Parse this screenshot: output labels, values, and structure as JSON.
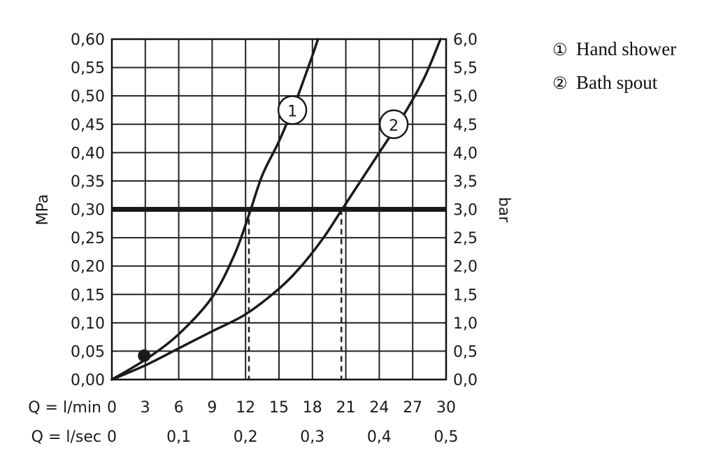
{
  "chart_data": {
    "type": "line",
    "title": "",
    "y_left": {
      "label": "MPa",
      "range": [
        0,
        0.6
      ],
      "step": 0.05,
      "ticks": [
        "0,00",
        "0,05",
        "0,10",
        "0,15",
        "0,20",
        "0,25",
        "0,30",
        "0,35",
        "0,40",
        "0,45",
        "0,50",
        "0,55",
        "0,60"
      ]
    },
    "y_right": {
      "label": "bar",
      "range": [
        0,
        6
      ],
      "step": 0.5,
      "ticks": [
        "0,0",
        "0,5",
        "1,0",
        "1,5",
        "2,0",
        "2,5",
        "3,0",
        "3,5",
        "4,0",
        "4,5",
        "5,0",
        "5,5",
        "6,0"
      ]
    },
    "x_lmin": {
      "label": "Q = l/min",
      "range": [
        0,
        30
      ],
      "step": 3,
      "ticks": [
        "0",
        "3",
        "6",
        "9",
        "12",
        "15",
        "18",
        "21",
        "24",
        "27",
        "30"
      ]
    },
    "x_lsec": {
      "label": "Q = l/sec",
      "ticks": [
        {
          "value": 0,
          "text": "0"
        },
        {
          "value": 0.1,
          "text": "0,1"
        },
        {
          "value": 0.2,
          "text": "0,2"
        },
        {
          "value": 0.3,
          "text": "0,3"
        },
        {
          "value": 0.4,
          "text": "0,4"
        },
        {
          "value": 0.5,
          "text": "0,5"
        }
      ]
    },
    "grid": true,
    "reference_line": {
      "y": 0.3
    },
    "series": [
      {
        "marker": "1",
        "points": [
          [
            0,
            0
          ],
          [
            3,
            0.035
          ],
          [
            6,
            0.08
          ],
          [
            9,
            0.145
          ],
          [
            11,
            0.22
          ],
          [
            12.3,
            0.29
          ],
          [
            13.5,
            0.36
          ],
          [
            15,
            0.42
          ],
          [
            16.5,
            0.49
          ],
          [
            17.8,
            0.56
          ],
          [
            18.5,
            0.6
          ]
        ],
        "label_at": [
          16.2,
          0.475
        ]
      },
      {
        "marker": "2",
        "points": [
          [
            0,
            0
          ],
          [
            3,
            0.025
          ],
          [
            6,
            0.055
          ],
          [
            9,
            0.085
          ],
          [
            12,
            0.115
          ],
          [
            15,
            0.16
          ],
          [
            17,
            0.2
          ],
          [
            19,
            0.25
          ],
          [
            20.5,
            0.295
          ],
          [
            22,
            0.34
          ],
          [
            24,
            0.4
          ],
          [
            26,
            0.46
          ],
          [
            28,
            0.53
          ],
          [
            29.5,
            0.6
          ]
        ],
        "label_at": [
          25.3,
          0.45
        ]
      }
    ],
    "dashed_drops": [
      {
        "x": 12.3,
        "y": 0.3
      },
      {
        "x": 20.6,
        "y": 0.3
      }
    ],
    "point_marker": {
      "x": 2.9,
      "y": 0.042
    }
  },
  "legend": [
    {
      "marker": "①",
      "text": "Hand shower"
    },
    {
      "marker": "②",
      "text": "Bath spout"
    }
  ]
}
